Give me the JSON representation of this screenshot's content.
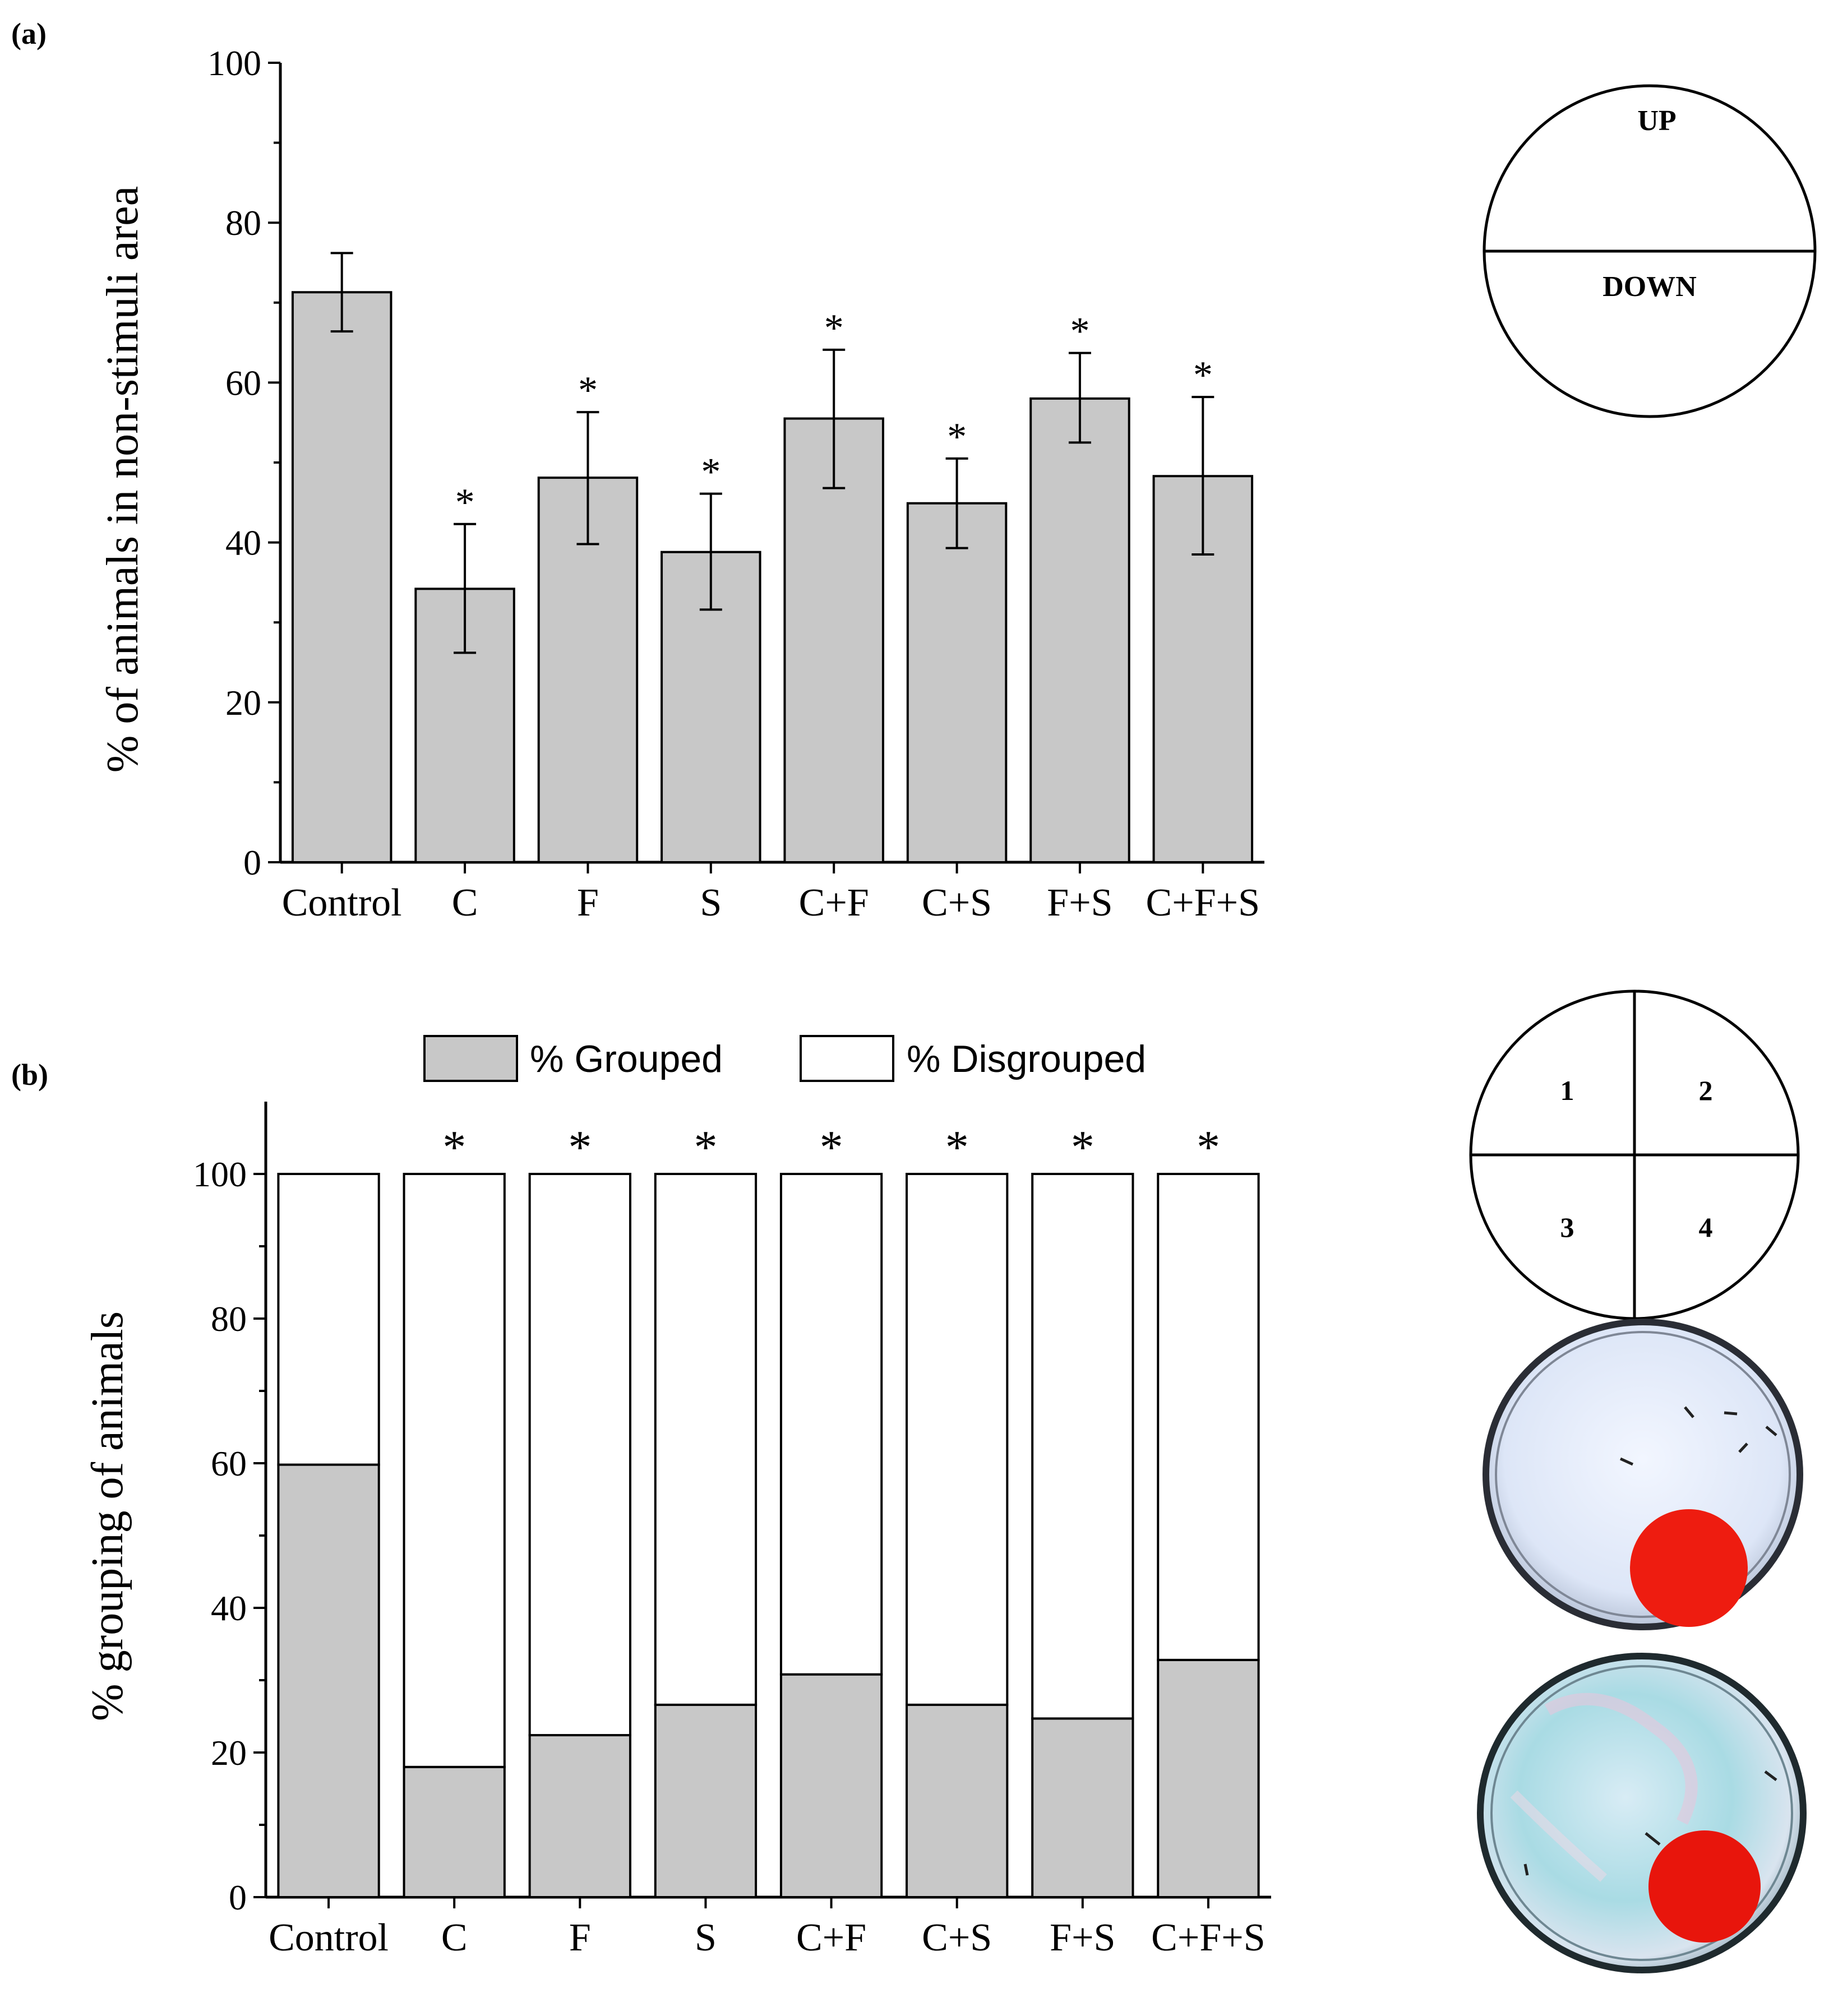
{
  "panel_a": {
    "label": "(a)",
    "diagram": {
      "up_label": "UP",
      "down_label": "DOWN"
    }
  },
  "panel_b": {
    "label": "(b)",
    "diagram": {
      "quadrants": [
        "1",
        "2",
        "3",
        "4"
      ]
    },
    "photos": [
      {
        "description_icon": "petri-dish-photo"
      },
      {
        "description_icon": "petri-dish-photo"
      }
    ]
  },
  "chart_data": [
    {
      "type": "bar",
      "ylabel": "% of animals in non-stimuli area",
      "xlabel": "",
      "ylim": [
        0,
        100
      ],
      "yticks": [
        0,
        20,
        40,
        60,
        80,
        100
      ],
      "categories": [
        "Control",
        "C",
        "F",
        "S",
        "C+F",
        "C+S",
        "F+S",
        "C+F+S"
      ],
      "values": [
        71.3,
        34.2,
        48.1,
        38.8,
        55.5,
        44.9,
        58.0,
        48.3
      ],
      "error_low": [
        66.4,
        26.2,
        39.8,
        31.6,
        46.8,
        39.3,
        52.5,
        38.5
      ],
      "error_high": [
        76.2,
        42.3,
        56.3,
        46.1,
        64.1,
        50.5,
        63.7,
        58.2
      ],
      "significance": [
        "",
        "*",
        "*",
        "*",
        "*",
        "*",
        "*",
        "*"
      ],
      "bar_color": "#c8c8c8",
      "grid": false
    },
    {
      "type": "bar",
      "stacked": true,
      "ylabel": "% grouping of animals",
      "xlabel": "",
      "ylim": [
        0,
        110
      ],
      "yticks": [
        0,
        20,
        40,
        60,
        80,
        100
      ],
      "categories": [
        "Control",
        "C",
        "F",
        "S",
        "C+F",
        "C+S",
        "F+S",
        "C+F+S"
      ],
      "series": [
        {
          "name": "% Grouped",
          "values": [
            59.8,
            18.0,
            22.4,
            26.6,
            30.8,
            26.6,
            24.7,
            32.8
          ],
          "color": "#c8c8c8"
        },
        {
          "name": "% Disgrouped",
          "values": [
            40.2,
            82.0,
            77.6,
            73.4,
            69.2,
            73.4,
            75.3,
            67.2
          ],
          "color": "#ffffff"
        }
      ],
      "significance": [
        "",
        "*",
        "*",
        "*",
        "*",
        "*",
        "*",
        "*"
      ],
      "legend_position": "top",
      "grid": false
    }
  ]
}
